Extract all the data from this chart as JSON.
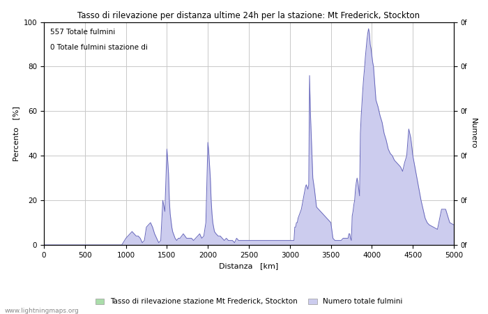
{
  "title": "Tasso di rilevazione per distanza ultime 24h per la stazione: Mt Frederick, Stockton",
  "xlabel": "Distanza   [km]",
  "ylabel_left": "Percento   [%]",
  "ylabel_right": "Numero",
  "annotation_line1": "557 Totale fulmini",
  "annotation_line2": "0 Totale fulmini stazione di",
  "xlim": [
    0,
    5000
  ],
  "ylim": [
    0,
    100
  ],
  "xticks": [
    0,
    500,
    1000,
    1500,
    2000,
    2500,
    3000,
    3500,
    4000,
    4500,
    5000
  ],
  "yticks_left": [
    0,
    20,
    40,
    60,
    80,
    100
  ],
  "background_color": "#ffffff",
  "grid_color": "#c8c8c8",
  "line_color": "#6666bb",
  "fill_color_blue": "#ccccee",
  "fill_color_green": "#aaddaa",
  "legend_label1": "Tasso di rilevazione stazione Mt Frederick, Stockton",
  "legend_label2": "Numero totale fulmini",
  "watermark": "www.lightningmaps.org",
  "data_x": [
    0,
    50,
    100,
    150,
    200,
    250,
    300,
    350,
    400,
    450,
    500,
    550,
    600,
    650,
    700,
    750,
    800,
    850,
    900,
    950,
    1000,
    1025,
    1050,
    1075,
    1100,
    1125,
    1150,
    1175,
    1200,
    1225,
    1250,
    1275,
    1300,
    1325,
    1350,
    1375,
    1400,
    1425,
    1450,
    1475,
    1500,
    1510,
    1520,
    1530,
    1540,
    1550,
    1560,
    1570,
    1580,
    1590,
    1600,
    1620,
    1640,
    1660,
    1680,
    1700,
    1720,
    1740,
    1760,
    1780,
    1800,
    1825,
    1850,
    1875,
    1900,
    1925,
    1950,
    1975,
    2000,
    2010,
    2020,
    2030,
    2040,
    2050,
    2060,
    2070,
    2080,
    2100,
    2125,
    2150,
    2175,
    2200,
    2225,
    2250,
    2275,
    2300,
    2325,
    2350,
    2375,
    2400,
    2450,
    2500,
    2550,
    2600,
    2650,
    2700,
    2750,
    2800,
    2850,
    2900,
    2950,
    3000,
    3010,
    3020,
    3030,
    3040,
    3050,
    3060,
    3070,
    3080,
    3090,
    3100,
    3110,
    3120,
    3130,
    3140,
    3150,
    3160,
    3170,
    3180,
    3190,
    3200,
    3210,
    3220,
    3230,
    3240,
    3250,
    3260,
    3270,
    3280,
    3300,
    3325,
    3350,
    3375,
    3400,
    3425,
    3450,
    3475,
    3500,
    3525,
    3550,
    3575,
    3600,
    3625,
    3650,
    3675,
    3700,
    3710,
    3720,
    3730,
    3740,
    3750,
    3760,
    3770,
    3780,
    3790,
    3800,
    3810,
    3820,
    3830,
    3840,
    3850,
    3860,
    3870,
    3880,
    3890,
    3900,
    3910,
    3920,
    3930,
    3940,
    3950,
    3960,
    3970,
    3980,
    3990,
    4000,
    4010,
    4020,
    4030,
    4040,
    4050,
    4075,
    4100,
    4125,
    4150,
    4175,
    4200,
    4225,
    4250,
    4275,
    4300,
    4325,
    4350,
    4375,
    4400,
    4425,
    4450,
    4475,
    4500,
    4525,
    4550,
    4575,
    4600,
    4625,
    4650,
    4675,
    4700,
    4750,
    4800,
    4850,
    4900,
    4950,
    5000
  ],
  "data_y": [
    0,
    0,
    0,
    0,
    0,
    0,
    0,
    0,
    0,
    0,
    0,
    0,
    0,
    0,
    0,
    0,
    0,
    0,
    0,
    0,
    3,
    4,
    5,
    6,
    5,
    4,
    4,
    3,
    1,
    2,
    8,
    9,
    10,
    8,
    5,
    3,
    1,
    2,
    20,
    15,
    43,
    38,
    32,
    20,
    14,
    11,
    8,
    6,
    5,
    4,
    3,
    2,
    3,
    3,
    4,
    5,
    4,
    3,
    3,
    3,
    3,
    2,
    3,
    4,
    5,
    3,
    4,
    10,
    46,
    42,
    36,
    30,
    20,
    14,
    10,
    8,
    6,
    5,
    4,
    4,
    3,
    2,
    3,
    2,
    2,
    2,
    1,
    3,
    2,
    2,
    2,
    2,
    2,
    2,
    2,
    2,
    2,
    2,
    2,
    2,
    2,
    2,
    2,
    2,
    2,
    2,
    2,
    8,
    8,
    10,
    10,
    12,
    13,
    14,
    15,
    16,
    18,
    20,
    22,
    24,
    26,
    27,
    26,
    25,
    27,
    76,
    60,
    50,
    40,
    30,
    25,
    17,
    16,
    15,
    14,
    13,
    12,
    11,
    10,
    3,
    2,
    2,
    2,
    2,
    3,
    3,
    3,
    3,
    5,
    5,
    3,
    2,
    13,
    15,
    18,
    20,
    25,
    28,
    30,
    28,
    25,
    22,
    50,
    58,
    64,
    70,
    75,
    79,
    84,
    88,
    92,
    95,
    97,
    95,
    90,
    88,
    85,
    82,
    80,
    75,
    70,
    65,
    62,
    58,
    55,
    50,
    47,
    43,
    41,
    40,
    38,
    37,
    36,
    35,
    33,
    37,
    40,
    52,
    48,
    40,
    35,
    30,
    25,
    20,
    16,
    12,
    10,
    9,
    8,
    7,
    16,
    16,
    10,
    9,
    8,
    7,
    5
  ]
}
